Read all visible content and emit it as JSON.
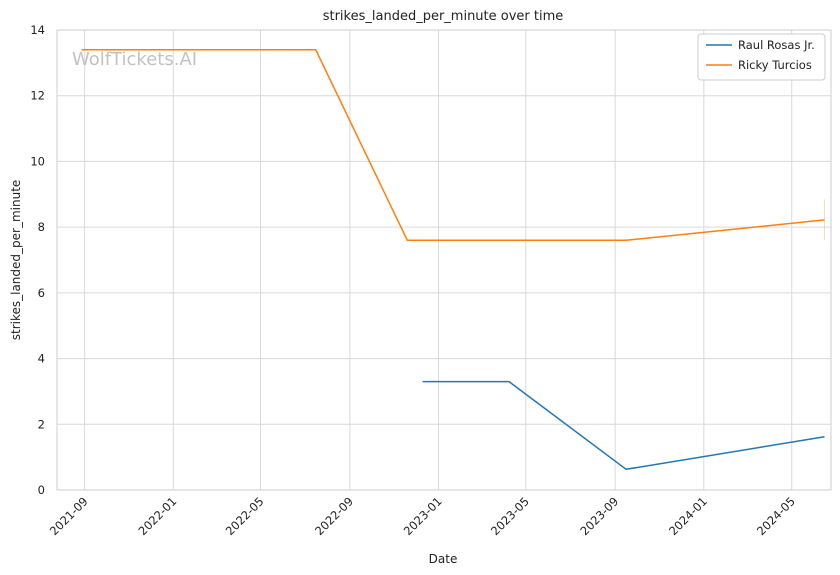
{
  "chart_data": {
    "type": "line",
    "title": "strikes_landed_per_minute over time",
    "xlabel": "Date",
    "ylabel": "strikes_landed_per_minute",
    "watermark": "WolfTickets.AI",
    "xlim": [
      "2021-07-25",
      "2024-06-24"
    ],
    "ylim": [
      0,
      14
    ],
    "y_ticks": [
      0,
      2,
      4,
      6,
      8,
      10,
      12,
      14
    ],
    "x_ticks": [
      "2021-09",
      "2022-01",
      "2022-05",
      "2022-09",
      "2023-01",
      "2023-05",
      "2023-09",
      "2024-01",
      "2024-05"
    ],
    "x_tick_dates": [
      "2021-09-01",
      "2022-01-01",
      "2022-05-01",
      "2022-09-01",
      "2023-01-01",
      "2023-05-01",
      "2023-09-01",
      "2024-01-01",
      "2024-05-01"
    ],
    "grid": true,
    "legend_position": "top-right",
    "series": [
      {
        "name": "Raul Rosas Jr.",
        "color": "#1f77b4",
        "points": [
          {
            "date": "2022-12-10",
            "value": 3.3
          },
          {
            "date": "2023-04-08",
            "value": 3.3
          },
          {
            "date": "2023-09-16",
            "value": 0.63
          },
          {
            "date": "2024-06-15",
            "value": 1.62
          }
        ]
      },
      {
        "name": "Ricky Turcios",
        "color": "#ff7f0e",
        "points": [
          {
            "date": "2021-08-28",
            "value": 13.4
          },
          {
            "date": "2022-07-16",
            "value": 13.4
          },
          {
            "date": "2022-11-19",
            "value": 7.6
          },
          {
            "date": "2023-09-16",
            "value": 7.6
          },
          {
            "date": "2024-06-15",
            "value": 8.22
          }
        ]
      }
    ],
    "error_bars": [
      {
        "series": "Ricky Turcios",
        "date": "2024-06-15",
        "low": 7.6,
        "high": 8.85,
        "color": "#ff7f0e"
      }
    ]
  }
}
